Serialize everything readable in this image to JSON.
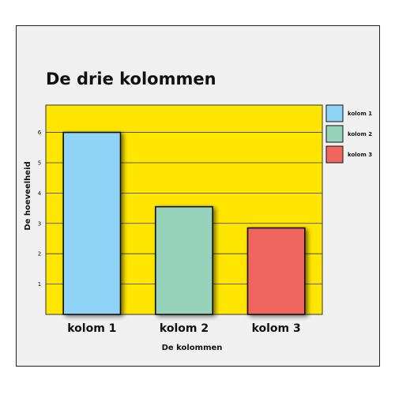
{
  "chart_data": {
    "type": "bar",
    "title": "De drie kolommen",
    "xlabel": "De kolommen",
    "ylabel": "De hoeveelheid",
    "categories": [
      "kolom 1",
      "kolom 2",
      "kolom 3"
    ],
    "values": [
      6,
      3.55,
      2.85
    ],
    "ylim": [
      0,
      6.9
    ],
    "yticks": [
      1,
      2,
      3,
      4,
      5,
      6
    ],
    "grid": true,
    "legend_position": "right",
    "colors": [
      "#8fd3f7",
      "#97d3bb",
      "#f0665e"
    ],
    "plot_background": "#ffe600"
  }
}
